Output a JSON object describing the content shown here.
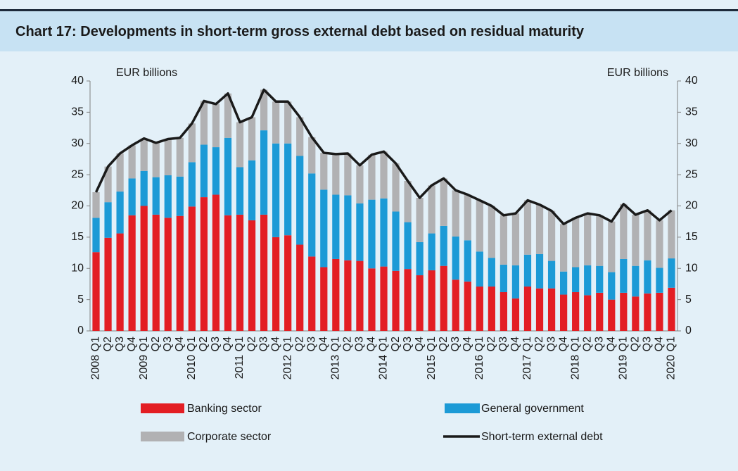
{
  "chart_data": {
    "type": "bar",
    "stacked": true,
    "title": "Chart 17: Developments in short-term gross external debt based on residual maturity",
    "y_label": "EUR billions",
    "y2_label": "EUR billions",
    "categories": [
      "2008 Q1",
      "Q2",
      "Q3",
      "Q4",
      "2009 Q1",
      "Q2",
      "Q3",
      "Q4",
      "2010 Q1",
      "Q2",
      "Q3",
      "Q4",
      "2011 Q1",
      "Q2",
      "Q3",
      "Q4",
      "2012 Q1",
      "Q2",
      "Q3",
      "Q4",
      "2013 Q1",
      "Q2",
      "Q3",
      "Q4",
      "2014 Q1",
      "Q2",
      "Q3",
      "Q4",
      "2015 Q1",
      "Q2",
      "Q3",
      "Q4",
      "2016 Q1",
      "Q2",
      "Q3",
      "Q4",
      "2017 Q1",
      "Q2",
      "Q3",
      "Q4",
      "2018 Q1",
      "Q2",
      "Q3",
      "Q4",
      "2019 Q1",
      "Q2",
      "Q3",
      "Q4",
      "2020 Q1"
    ],
    "series": [
      {
        "name": "Banking sector",
        "color": "#e31e24",
        "values": [
          12.6,
          14.9,
          15.6,
          18.5,
          20.0,
          18.6,
          18.1,
          18.4,
          19.9,
          21.4,
          21.8,
          18.5,
          18.6,
          17.7,
          18.6,
          15.0,
          15.3,
          13.8,
          11.9,
          10.2,
          11.5,
          11.3,
          11.2,
          10.0,
          10.3,
          9.6,
          9.9,
          8.9,
          9.7,
          10.4,
          8.2,
          7.9,
          7.1,
          7.1,
          6.2,
          5.2,
          7.1,
          6.8,
          6.8,
          5.8,
          6.2,
          5.7,
          6.1,
          5.0,
          6.1,
          5.5,
          6.0,
          6.1,
          6.9
        ]
      },
      {
        "name": "General government",
        "color": "#1c9ad6",
        "values": [
          5.5,
          5.7,
          6.7,
          5.9,
          5.6,
          6.0,
          6.8,
          6.3,
          7.1,
          8.4,
          7.6,
          12.4,
          7.6,
          9.6,
          13.5,
          15.0,
          14.7,
          14.2,
          13.3,
          12.4,
          10.3,
          10.4,
          9.2,
          11.0,
          10.9,
          9.5,
          7.5,
          5.3,
          5.9,
          6.4,
          6.9,
          6.6,
          5.6,
          4.6,
          4.4,
          5.3,
          5.1,
          5.5,
          4.4,
          3.7,
          4.0,
          4.8,
          4.3,
          4.4,
          5.4,
          4.9,
          5.3,
          4.0,
          4.7
        ]
      },
      {
        "name": "Corporate sector",
        "color": "#b1b1b3",
        "values": [
          4.1,
          5.7,
          6.1,
          5.3,
          5.2,
          5.5,
          5.8,
          6.2,
          6.2,
          7.0,
          6.9,
          7.1,
          7.2,
          6.9,
          6.5,
          6.7,
          6.7,
          6.2,
          5.8,
          5.9,
          6.5,
          6.7,
          6.1,
          7.2,
          7.5,
          7.7,
          6.6,
          7.1,
          7.7,
          7.6,
          7.4,
          7.3,
          8.2,
          8.3,
          7.9,
          8.3,
          8.7,
          7.9,
          8.0,
          7.6,
          7.9,
          8.3,
          8.1,
          8.1,
          8.8,
          8.2,
          8.0,
          7.6,
          7.7
        ]
      },
      {
        "name": "Short-term external debt",
        "type": "line",
        "color": "#1a1a1a",
        "values": [
          22.2,
          26.3,
          28.4,
          29.7,
          30.8,
          30.1,
          30.7,
          30.9,
          33.2,
          36.8,
          36.3,
          38.0,
          33.4,
          34.2,
          38.6,
          36.7,
          36.7,
          34.2,
          31.0,
          28.5,
          28.3,
          28.4,
          26.5,
          28.2,
          28.7,
          26.8,
          24.0,
          21.3,
          23.3,
          24.4,
          22.5,
          21.8,
          20.9,
          20.0,
          18.5,
          18.8,
          20.9,
          20.2,
          19.2,
          17.1,
          18.1,
          18.8,
          18.5,
          17.5,
          20.3,
          18.6,
          19.3,
          17.7,
          19.3
        ]
      }
    ],
    "ylim": [
      0,
      40
    ],
    "yticks": [
      0,
      5,
      10,
      15,
      20,
      25,
      30,
      35,
      40
    ],
    "y2lim": [
      0,
      40
    ],
    "y2ticks": [
      0,
      5,
      10,
      15,
      20,
      25,
      30,
      35,
      40
    ]
  }
}
